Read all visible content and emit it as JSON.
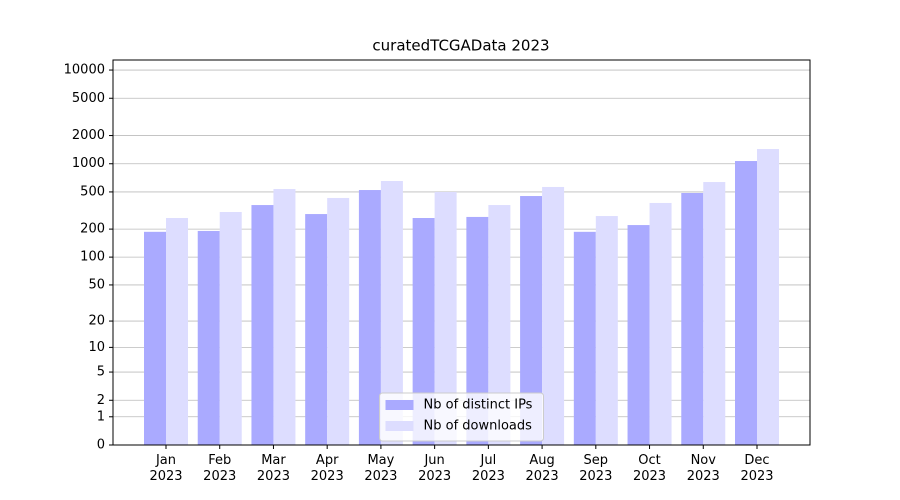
{
  "chart_data": {
    "type": "bar",
    "title": "curatedTCGAData 2023",
    "categories": [
      "Jan\n2023",
      "Feb\n2023",
      "Mar\n2023",
      "Apr\n2023",
      "May\n2023",
      "Jun\n2023",
      "Jul\n2023",
      "Aug\n2023",
      "Sep\n2023",
      "Oct\n2023",
      "Nov\n2023",
      "Dec\n2023"
    ],
    "series": [
      {
        "name": "Nb of distinct IPs",
        "color": "#aaaaff",
        "values": [
          187,
          191,
          362,
          290,
          524,
          263,
          270,
          452,
          187,
          221,
          487,
          1069
        ]
      },
      {
        "name": "Nb of downloads",
        "color": "#ddddff",
        "values": [
          263,
          305,
          537,
          431,
          654,
          499,
          362,
          565,
          276,
          381,
          638,
          1436
        ]
      }
    ],
    "yscale": "log1p",
    "ylim": [
      0,
      12800
    ],
    "yticks": [
      0,
      1,
      2,
      5,
      10,
      20,
      50,
      100,
      200,
      500,
      1000,
      2000,
      5000,
      10000
    ],
    "grid": true,
    "legend": "lower center"
  }
}
